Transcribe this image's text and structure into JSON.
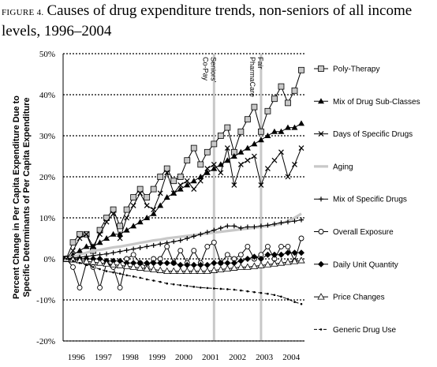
{
  "figure": {
    "label": "FIGURE 4.",
    "title": "Causes of drug expenditure trends, non-seniors of all income levels, 1996–2004"
  },
  "chart_data": {
    "type": "line",
    "ylabel": "Percent Change in Per Capita Expenditure Due to Specific Determinants of Per Capita Expenditure",
    "xlabel": "",
    "ylim": [
      -20,
      50
    ],
    "yticks": [
      -20,
      -10,
      0,
      10,
      20,
      30,
      40,
      50
    ],
    "ytick_labels": [
      "-20%",
      "-10%",
      "0%",
      "10%",
      "20%",
      "30%",
      "40%",
      "50%"
    ],
    "year_labels": [
      "1996",
      "1997",
      "1998",
      "1999",
      "2000",
      "2001",
      "2002",
      "2003",
      "2004"
    ],
    "x_start": "1996-Q1",
    "x_end": "2004-Q3",
    "grid": "dotted horizontal at 10% intervals",
    "legend_position": "right",
    "annotations": [
      {
        "label": "Seniors' Co-Pay",
        "at": "2001-Q3"
      },
      {
        "label": "Fair PharmaCare",
        "at": "2003-Q2"
      }
    ],
    "series": [
      {
        "name": "Poly-Therapy",
        "marker": "square",
        "values": [
          0,
          4,
          6,
          6,
          2,
          7,
          10,
          12,
          8,
          12,
          15,
          17,
          15,
          17,
          20,
          22,
          19,
          20,
          24,
          27,
          23,
          26,
          28,
          30,
          32,
          26,
          31,
          34,
          37,
          31,
          36,
          39,
          42,
          38,
          41,
          46
        ]
      },
      {
        "name": "Mix of Drug Sub-Classes",
        "marker": "triangle-filled",
        "values": [
          0,
          1,
          2,
          3,
          3,
          4,
          5,
          6,
          6,
          7,
          8,
          9,
          10,
          11,
          13,
          15,
          16,
          17,
          18,
          19,
          20,
          21,
          22,
          23,
          24,
          25,
          26,
          27,
          28,
          29,
          30,
          31,
          31,
          32,
          32,
          33
        ]
      },
      {
        "name": "Days of Specific Drugs",
        "marker": "x",
        "values": [
          0,
          2,
          5,
          6,
          3,
          6,
          9,
          11,
          5,
          10,
          13,
          16,
          13,
          12,
          16,
          21,
          16,
          18,
          19,
          17,
          19,
          22,
          23,
          21,
          27,
          18,
          23,
          24,
          25,
          18,
          22,
          24,
          26,
          20,
          23,
          27
        ]
      },
      {
        "name": "Aging",
        "marker": "none",
        "values": [
          0,
          0.5,
          1,
          1.5,
          2,
          2.2,
          2.5,
          2.8,
          3,
          3.3,
          3.6,
          3.9,
          4.2,
          4.5,
          4.7,
          5,
          5.2,
          5.4,
          5.6,
          5.8,
          6,
          6.2,
          6.4,
          6.6,
          6.8,
          7,
          7.2,
          7.4,
          7.6,
          7.8,
          8,
          8.3,
          8.6,
          9.2,
          10,
          11
        ]
      },
      {
        "name": "Mix of Specific Drugs",
        "marker": "plus",
        "values": [
          0,
          0.2,
          0.4,
          0.6,
          0.8,
          1,
          1.2,
          1.5,
          1.8,
          2.1,
          2.4,
          2.7,
          3,
          3.3,
          3.6,
          3.9,
          4.2,
          4.5,
          5,
          5.5,
          6,
          6.5,
          7,
          7.5,
          8,
          8,
          7.5,
          7.8,
          7.8,
          8,
          8.2,
          8.5,
          8.8,
          9,
          9.2,
          9.5
        ]
      },
      {
        "name": "Overall Exposure",
        "marker": "circle",
        "values": [
          0,
          -2,
          -7,
          -1,
          -2,
          -7,
          -1,
          -2,
          -7,
          0,
          1,
          -1,
          -2,
          0,
          0,
          3,
          -1,
          2,
          -1,
          2,
          -1,
          3,
          4,
          -1,
          1,
          0,
          1,
          3,
          0,
          1,
          3,
          0,
          3,
          3,
          -0.5,
          5
        ]
      },
      {
        "name": "Daily Unit Quantity",
        "marker": "diamond-filled",
        "values": [
          0,
          0,
          0,
          0,
          0,
          0,
          -0.5,
          -0.5,
          -0.5,
          -1,
          -1,
          -1,
          -1,
          -1,
          -1,
          -1,
          -1,
          -1.5,
          -1.5,
          -1.5,
          -1.5,
          -1.5,
          -1,
          -1,
          -1,
          -1,
          -0.5,
          0,
          0.5,
          0,
          1,
          1,
          1,
          1.5,
          1.5,
          1.5
        ]
      },
      {
        "name": "Price Changes",
        "marker": "triangle-open",
        "values": [
          0,
          -0.2,
          -0.4,
          -0.6,
          -0.8,
          -1,
          -1.2,
          -1.4,
          -1.6,
          -1.8,
          -2,
          -2.2,
          -2.4,
          -2.6,
          -2.8,
          -3,
          -3,
          -3,
          -3,
          -3,
          -3,
          -3,
          -2.8,
          -2.6,
          -2.4,
          -2.2,
          -2,
          -2,
          -1.8,
          -1.6,
          -1.4,
          -1.2,
          -1,
          -0.8,
          -0.6,
          -0.4
        ]
      },
      {
        "name": "Generic Drug Use",
        "marker": "dot-dash",
        "values": [
          0,
          -0.5,
          -1,
          -1.5,
          -2,
          -2.5,
          -3,
          -3.3,
          -3.6,
          -4,
          -4.3,
          -4.6,
          -5,
          -5.3,
          -5.6,
          -6,
          -6.2,
          -6.4,
          -6.6,
          -6.8,
          -7,
          -7.1,
          -7.2,
          -7.3,
          -7.4,
          -7.5,
          -7.7,
          -7.9,
          -8.1,
          -8.3,
          -8.5,
          -8.8,
          -9.2,
          -9.8,
          -10.5,
          -11
        ]
      }
    ],
    "colors": {
      "line": "#000000",
      "aging": "#c8c8c8",
      "markerFill": "#c8c8c8",
      "grid": "#000000"
    }
  }
}
